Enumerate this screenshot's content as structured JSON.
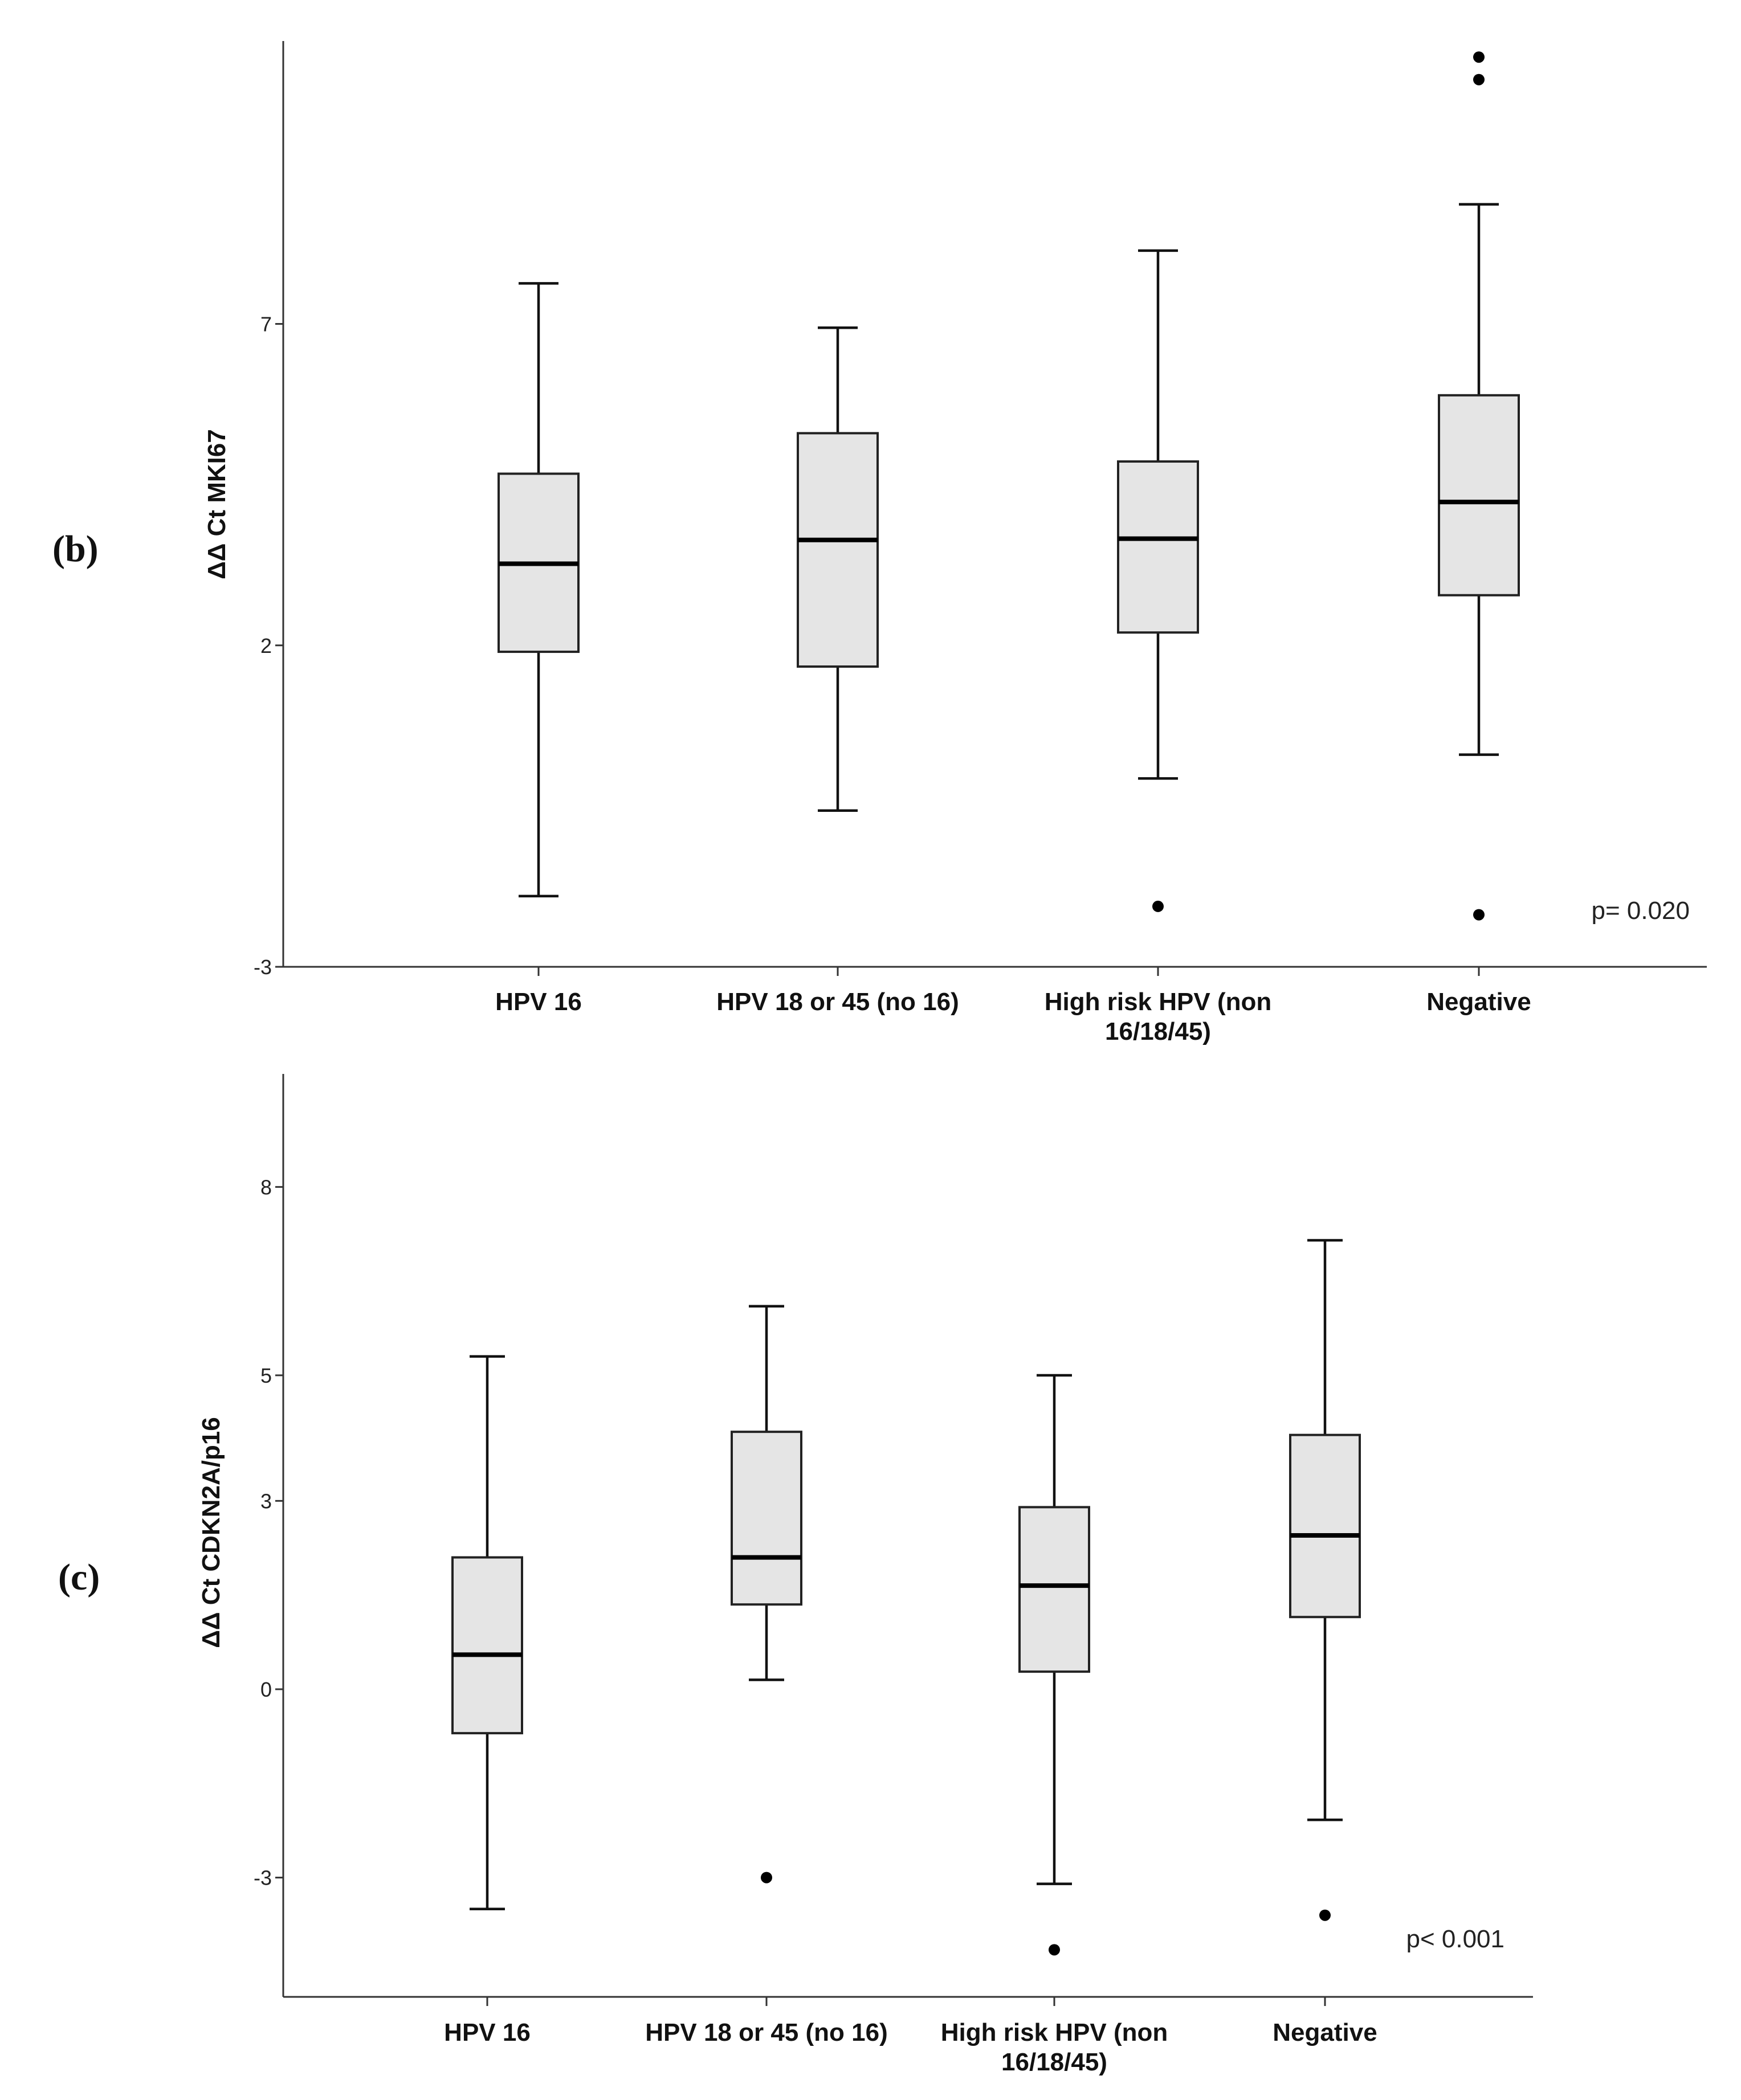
{
  "chart_data": [
    {
      "type": "boxplot",
      "panel_label": "(b)",
      "ylabel": "ΔΔ Ct  MKI67",
      "ylim": [
        -3,
        11.4
      ],
      "yticks": [
        -3,
        2,
        7
      ],
      "ytick_labels": [
        "-3",
        "2",
        "7"
      ],
      "p_value": "p= 0.020",
      "categories": [
        {
          "label_lines": [
            "HPV 16"
          ],
          "whisker_low": -1.9,
          "q1": 1.9,
          "median": 3.27,
          "q3": 4.67,
          "whisker_high": 7.63,
          "outliers": []
        },
        {
          "label_lines": [
            "HPV 18 or 45 (no 16)"
          ],
          "whisker_low": -0.57,
          "q1": 1.67,
          "median": 3.64,
          "q3": 5.3,
          "whisker_high": 6.94,
          "outliers": []
        },
        {
          "label_lines": [
            "High risk HPV (non",
            "16/18/45)"
          ],
          "whisker_low": -0.07,
          "q1": 2.2,
          "median": 3.66,
          "q3": 4.86,
          "whisker_high": 8.14,
          "outliers": [
            -2.06
          ]
        },
        {
          "label_lines": [
            "Negative"
          ],
          "whisker_low": 0.3,
          "q1": 2.78,
          "median": 4.23,
          "q3": 5.89,
          "whisker_high": 8.86,
          "outliers": [
            -2.19,
            10.8,
            11.15
          ]
        }
      ]
    },
    {
      "type": "boxplot",
      "panel_label": "(c)",
      "ylabel": "ΔΔ Ct  CDKN2A/p16",
      "ylim": [
        -4.9,
        9.8
      ],
      "yticks": [
        -3,
        0,
        3,
        5,
        8
      ],
      "ytick_labels": [
        "-3",
        "0",
        "3",
        "5",
        "8"
      ],
      "p_value": "p< 0.001",
      "categories": [
        {
          "label_lines": [
            "HPV 16"
          ],
          "whisker_low": -3.5,
          "q1": -0.7,
          "median": 0.55,
          "q3": 2.1,
          "whisker_high": 5.3,
          "outliers": []
        },
        {
          "label_lines": [
            "HPV 18 or 45 (no 16)"
          ],
          "whisker_low": 0.15,
          "q1": 1.35,
          "median": 2.1,
          "q3": 4.1,
          "whisker_high": 6.1,
          "outliers": [
            -3
          ]
        },
        {
          "label_lines": [
            "High risk HPV (non",
            "16/18/45)"
          ],
          "whisker_low": -3.1,
          "q1": 0.28,
          "median": 1.65,
          "q3": 2.9,
          "whisker_high": 5,
          "outliers": [
            -4.15
          ]
        },
        {
          "label_lines": [
            "Negative"
          ],
          "whisker_low": -2.08,
          "q1": 1.15,
          "median": 2.45,
          "q3": 4.05,
          "whisker_high": 7.15,
          "outliers": [
            -3.6
          ]
        }
      ]
    }
  ]
}
